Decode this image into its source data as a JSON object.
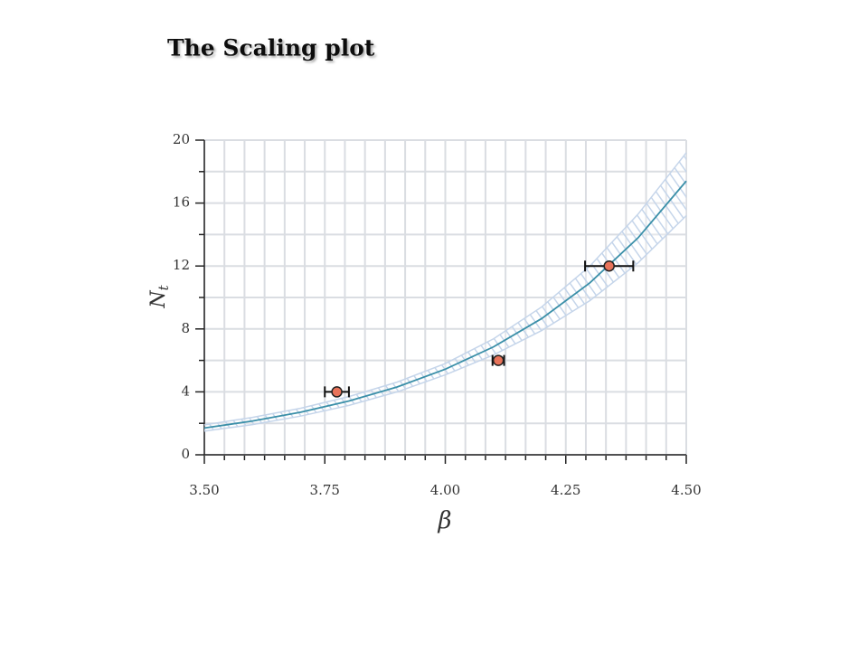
{
  "chart_data": {
    "type": "scatter",
    "title": "The Scaling plot",
    "x_label": "β",
    "y_label": "N",
    "y_label_sub": "t",
    "xlim": [
      3.5,
      4.5
    ],
    "xticks": [
      {
        "value": 3.5,
        "label": "3.50"
      },
      {
        "value": 3.75,
        "label": "3.75"
      },
      {
        "value": 4.0,
        "label": "4.00"
      },
      {
        "value": 4.25,
        "label": "4.25"
      },
      {
        "value": 4.5,
        "label": "4.50"
      }
    ],
    "ylim": [
      0,
      20
    ],
    "yticks": [
      0,
      4,
      8,
      12,
      16,
      20
    ],
    "x_minor_divisions": 6,
    "y_minor_divisions": 2,
    "grid": true,
    "series": [
      {
        "kind": "points",
        "color": "#e8735a",
        "x": [
          3.775,
          4.11,
          4.34
        ],
        "values": [
          4,
          6,
          12
        ],
        "xerr": [
          0.025,
          0.012,
          0.05
        ]
      },
      {
        "kind": "line",
        "color": "#3a8fa8",
        "x": [
          3.5,
          3.6,
          3.7,
          3.8,
          3.9,
          4.0,
          4.1,
          4.2,
          4.3,
          4.4,
          4.5
        ],
        "values": [
          1.7,
          2.15,
          2.71,
          3.42,
          4.31,
          5.44,
          6.86,
          8.66,
          10.93,
          13.79,
          17.4
        ]
      },
      {
        "kind": "band",
        "color": "#c5d5ea",
        "x": [
          3.5,
          3.6,
          3.7,
          3.8,
          3.9,
          4.0,
          4.1,
          4.2,
          4.3,
          4.4,
          4.5
        ],
        "lower": [
          1.5,
          1.92,
          2.46,
          3.14,
          4.0,
          5.08,
          6.35,
          7.9,
          9.8,
          12.2,
          15.2
        ],
        "upper": [
          1.9,
          2.38,
          2.96,
          3.7,
          4.62,
          5.8,
          7.37,
          9.4,
          12.0,
          15.3,
          19.2
        ]
      }
    ]
  }
}
